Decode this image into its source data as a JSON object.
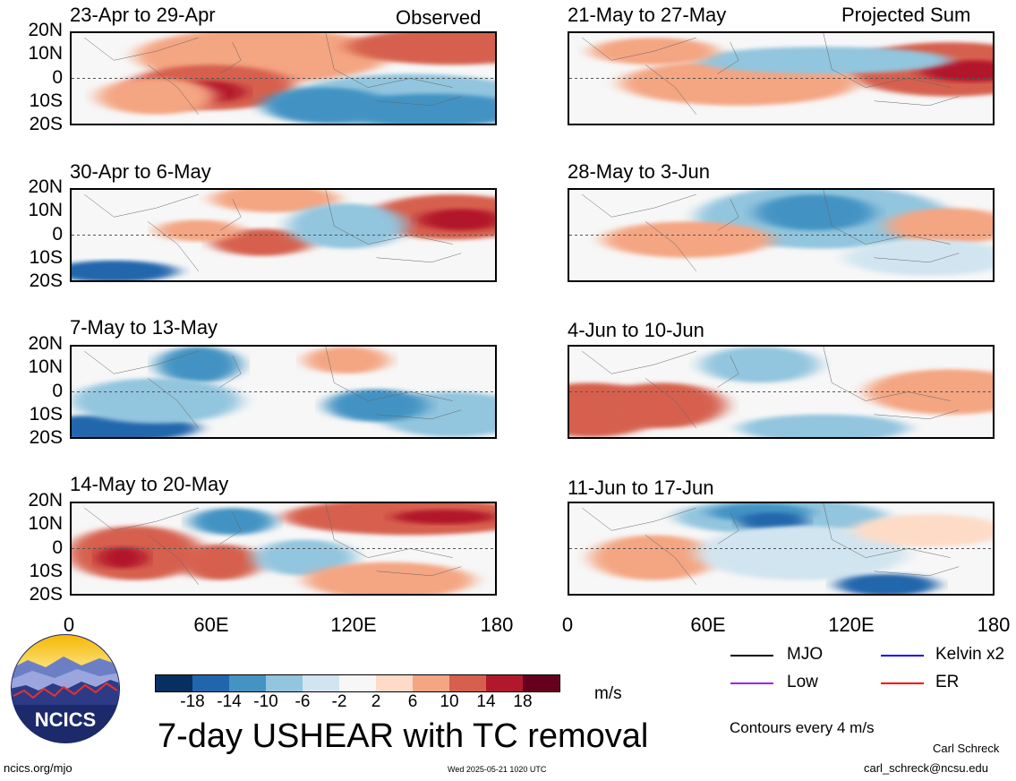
{
  "header": {
    "left_tag": "Observed",
    "right_tag": "Projected Sum"
  },
  "panels_left": [
    {
      "title": "23-Apr to 29-Apr"
    },
    {
      "title": "30-Apr to 6-May"
    },
    {
      "title": "7-May to 13-May"
    },
    {
      "title": "14-May to 20-May"
    }
  ],
  "panels_right": [
    {
      "title": "21-May to 27-May"
    },
    {
      "title": "28-May to 3-Jun"
    },
    {
      "title": "4-Jun to 10-Jun"
    },
    {
      "title": "11-Jun to 17-Jun"
    }
  ],
  "lat_labels": [
    "20N",
    "10N",
    "0",
    "10S",
    "20S"
  ],
  "lon_labels": [
    "0",
    "60E",
    "120E",
    "180"
  ],
  "colorbar": {
    "colors": [
      "#053061",
      "#2166ac",
      "#4393c3",
      "#92c5de",
      "#d1e5f0",
      "#f7f7f7",
      "#fddbc7",
      "#f4a582",
      "#d6604d",
      "#b2182b",
      "#67001f"
    ],
    "ticks": [
      "-18",
      "-14",
      "-10",
      "-6",
      "-2",
      "2",
      "6",
      "10",
      "14",
      "18"
    ],
    "units": "m/s"
  },
  "main_title": "7-day USHEAR with TC removal",
  "legend": [
    {
      "label": "MJO",
      "color": "#000000"
    },
    {
      "label": "Kelvin x2",
      "color": "#0000ff"
    },
    {
      "label": "Low",
      "color": "#a020f0"
    },
    {
      "label": "ER",
      "color": "#ff0000"
    }
  ],
  "contours_note": "Contours every 4 m/s",
  "logo_text": "NCICS",
  "footer": {
    "site": "ncics.org/mjo",
    "timestamp": "Wed 2025-05-21 1020 UTC",
    "author": "Carl Schreck",
    "email": "carl_schreck@ncsu.edu"
  }
}
